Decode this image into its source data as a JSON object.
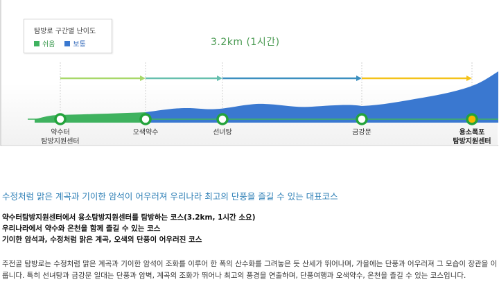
{
  "legend": {
    "title": "탐방로 구간별 난이도",
    "easy_label": "쉬움",
    "normal_label": "보통",
    "easy_color": "#3fb25f",
    "normal_color": "#3a78d0"
  },
  "distance_label": "3.2km (1시간)",
  "stops": [
    {
      "line1": "약수터",
      "line2": "탐방지원센터",
      "bold": false
    },
    {
      "line1": "오색약수",
      "line2": "",
      "bold": false
    },
    {
      "line1": "선녀탕",
      "line2": "",
      "bold": false
    },
    {
      "line1": "금강문",
      "line2": "",
      "bold": false
    },
    {
      "line1": "용소폭포",
      "line2": "탐방지원센터",
      "bold": true
    }
  ],
  "headline": "수정처럼 맑은 계곡과 기이한 암석이 어우러져 우리나라 최고의 단풍을 즐길 수 있는 대표코스",
  "bullets": [
    "약수터탐방지원센터에서 용소탐방지원센터를 탐방하는 코스(3.2km, 1시간 소요)",
    "우리나라에서 약수와 온천을 함께 즐길 수 있는 코스",
    "기이한 암석과, 수정처럼 맑은 계곡, 오색의 단풍이 어우러진 코스"
  ],
  "description": "주전골 탐방로는 수정처럼 맑은 계곡과 기이한 암석이 조화를 이루어 한 폭의 산수화를 그려놓은 듯 산세가 뛰어나며, 가을에는 단풍과 어우러져 그 모습이 장관을 이룹니다. 특히 선녀탕과 금강문 일대는 단풍과 암벽, 계곡의 조화가 뛰어나 최고의 풍경을 연출하며, 단풍여행과 오색약수, 온천을 즐길 수 있는 코스입니다."
}
